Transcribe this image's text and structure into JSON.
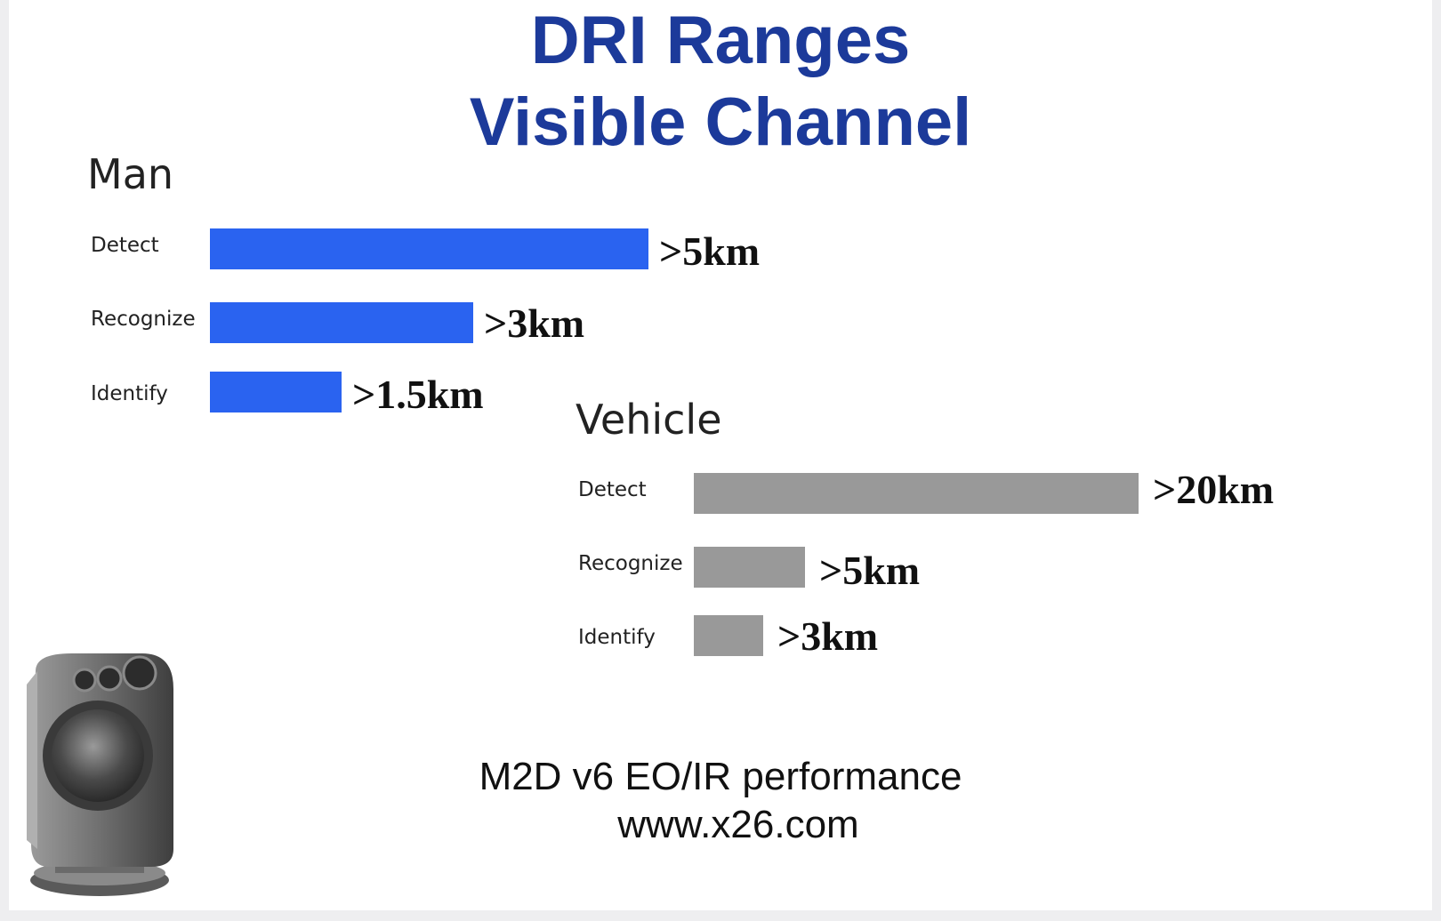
{
  "title_line1": "DRI Ranges",
  "title_line2": "Visible Channel",
  "chart_data": [
    {
      "type": "bar",
      "orientation": "horizontal",
      "title": "Man",
      "categories": [
        "Detect",
        "Recognize",
        "Identify"
      ],
      "values": [
        5,
        3,
        1.5
      ],
      "unit": "km",
      "value_labels": [
        ">5km",
        ">3km",
        ">1.5km"
      ],
      "color": "#2a63f0",
      "xlim": [
        0,
        5.1
      ],
      "grid": false
    },
    {
      "type": "bar",
      "orientation": "horizontal",
      "title": "Vehicle",
      "categories": [
        "Detect",
        "Recognize",
        "Identify"
      ],
      "values": [
        20,
        5,
        3
      ],
      "unit": "km",
      "value_labels": [
        ">20km",
        ">5km",
        ">3km"
      ],
      "color": "#999999",
      "grid": false
    }
  ],
  "footer_line1": "M2D v6 EO/IR performance",
  "footer_line2": "www.x26.com",
  "icons": {
    "product_image": "camera-turret-icon"
  }
}
